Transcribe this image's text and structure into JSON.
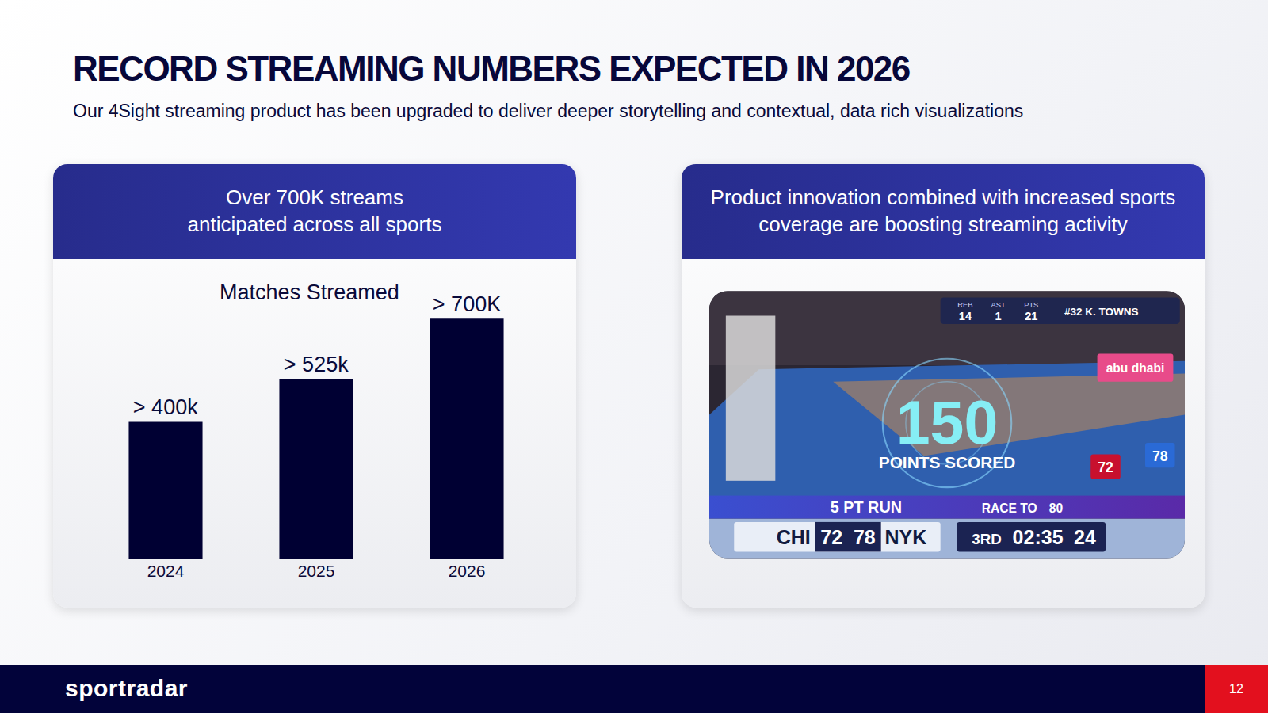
{
  "header": {
    "title": "RECORD STREAMING NUMBERS EXPECTED IN 2026",
    "subtitle": "Our 4Sight streaming product has been upgraded to deliver deeper storytelling and contextual, data rich visualizations"
  },
  "left_panel": {
    "heading": "Over 700K streams\nanticipated across all sports"
  },
  "chart_data": {
    "type": "bar",
    "title": "Matches Streamed",
    "categories": [
      "2024",
      "2025",
      "2026"
    ],
    "values": [
      400000,
      525000,
      700000
    ],
    "value_labels": [
      "> 400k",
      "> 525k",
      "> 700K"
    ],
    "data_labels": true,
    "color": "#000033",
    "ylim": [
      0,
      770000
    ],
    "tick_labels": "x",
    "grid": false
  },
  "right_panel": {
    "heading": "Product innovation combined with increased sports\ncoverage are boosting streaming activity",
    "screenshot": {
      "stats": [
        {
          "label": "REB",
          "value": 14
        },
        {
          "label": "AST",
          "value": 1
        },
        {
          "label": "PTS",
          "value": 21
        }
      ],
      "player": "#32 K. TOWNS",
      "sign": "abu dhabi",
      "big_number": 150,
      "big_label": "POINTS SCORED",
      "run": "5 PT RUN",
      "race_label": "RACE TO",
      "race_value": 80,
      "home": {
        "team": "CHI",
        "score": 72
      },
      "away": {
        "team": "NYK",
        "score": 78
      },
      "period": "3RD",
      "clock": "02:35",
      "shot_clock": 24
    }
  },
  "footer": {
    "brand": "sportradar",
    "page": "12"
  }
}
